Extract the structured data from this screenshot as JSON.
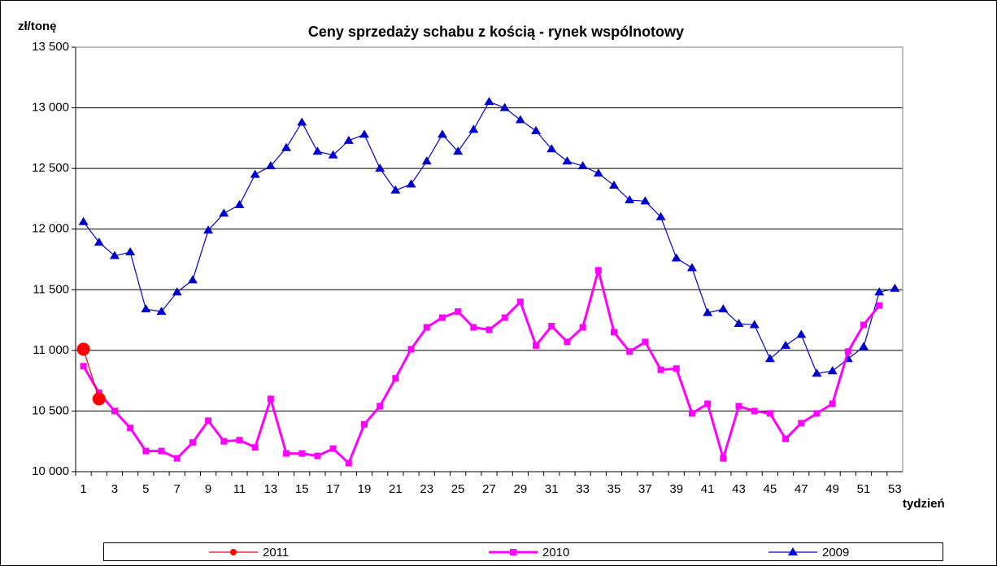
{
  "chart_data": {
    "type": "line",
    "title": "Ceny sprzedaży schabu z kością -  rynek wspólnotowy",
    "y_label": "zł/tonę",
    "x_label": "tydzień",
    "categories": [
      "1",
      null,
      "3",
      null,
      "5",
      null,
      "7",
      null,
      "9",
      null,
      "11",
      null,
      "13",
      null,
      "15",
      null,
      "17",
      null,
      "19",
      null,
      "21",
      null,
      "23",
      null,
      "25",
      null,
      "27",
      null,
      "29",
      null,
      "31",
      null,
      "33",
      null,
      "35",
      null,
      "37",
      null,
      "39",
      null,
      "41",
      null,
      "43",
      null,
      "45",
      null,
      "47",
      null,
      "49",
      null,
      "51",
      null,
      "53"
    ],
    "series": [
      {
        "name": "2011",
        "color": "#ff0000",
        "marker": "circle",
        "values": [
          11010,
          10600,
          null,
          null,
          null,
          null,
          null,
          null,
          null,
          null,
          null,
          null,
          null,
          null,
          null,
          null,
          null,
          null,
          null,
          null,
          null,
          null,
          null,
          null,
          null,
          null,
          null,
          null,
          null,
          null,
          null,
          null,
          null,
          null,
          null,
          null,
          null,
          null,
          null,
          null,
          null,
          null,
          null,
          null,
          null,
          null,
          null,
          null,
          null,
          null,
          null,
          null,
          null
        ]
      },
      {
        "name": "2010",
        "color": "#ff00ff",
        "marker": "square",
        "values": [
          10870,
          10650,
          10500,
          10360,
          10170,
          10170,
          10110,
          10240,
          10420,
          10250,
          10260,
          10200,
          10600,
          10150,
          10150,
          10130,
          10190,
          10070,
          10390,
          10540,
          10770,
          11010,
          11190,
          11270,
          11320,
          11190,
          11170,
          11270,
          11400,
          11040,
          11200,
          11070,
          11190,
          11660,
          11150,
          10990,
          11070,
          10840,
          10850,
          10480,
          10560,
          10110,
          10540,
          10500,
          10480,
          10270,
          10400,
          10480,
          10560,
          10990,
          11210,
          11370,
          null
        ]
      },
      {
        "name": "2009",
        "color": "#0000cc",
        "marker": "triangle",
        "values": [
          12060,
          11890,
          11780,
          11810,
          11340,
          11320,
          11480,
          11580,
          11990,
          12130,
          12200,
          12450,
          12520,
          12670,
          12880,
          12640,
          12610,
          12730,
          12780,
          12500,
          12320,
          12370,
          12560,
          12780,
          12640,
          12820,
          13050,
          13000,
          12900,
          12810,
          12660,
          12560,
          12520,
          12460,
          12360,
          12240,
          12230,
          12100,
          11760,
          11680,
          11310,
          11340,
          11220,
          11210,
          10930,
          11040,
          11130,
          10810,
          10830,
          10930,
          11030,
          11480,
          11510
        ]
      }
    ],
    "ylim": [
      10000,
      13500
    ],
    "yticks": [
      {
        "value": 10000,
        "label": "10 000"
      },
      {
        "value": 10500,
        "label": "10 500"
      },
      {
        "value": 11000,
        "label": "11 000"
      },
      {
        "value": 11500,
        "label": "11 500"
      },
      {
        "value": 12000,
        "label": "12 000"
      },
      {
        "value": 12500,
        "label": "12 500"
      },
      {
        "value": 13000,
        "label": "13 000"
      },
      {
        "value": 13500,
        "label": "13 500"
      }
    ],
    "grid": true,
    "legend": "bottom"
  }
}
